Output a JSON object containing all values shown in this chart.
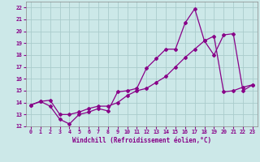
{
  "xlabel": "Windchill (Refroidissement éolien,°C)",
  "ylabel": "",
  "background_color": "#cce8e8",
  "grid_color": "#aacccc",
  "line_color": "#880088",
  "marker": "D",
  "markersize": 2.0,
  "linewidth": 0.9,
  "xlim": [
    -0.5,
    23.5
  ],
  "ylim": [
    12,
    22.5
  ],
  "yticks": [
    12,
    13,
    14,
    15,
    16,
    17,
    18,
    19,
    20,
    21,
    22
  ],
  "xticks": [
    0,
    1,
    2,
    3,
    4,
    5,
    6,
    7,
    8,
    9,
    10,
    11,
    12,
    13,
    14,
    15,
    16,
    17,
    18,
    19,
    20,
    21,
    22,
    23
  ],
  "line1_x": [
    0,
    1,
    2,
    3,
    4,
    5,
    6,
    7,
    8,
    9,
    10,
    11,
    12,
    13,
    14,
    15,
    16,
    17,
    18,
    19,
    20,
    21,
    22,
    23
  ],
  "line1_y": [
    13.8,
    14.1,
    13.7,
    12.6,
    12.2,
    13.0,
    13.2,
    13.5,
    13.3,
    14.9,
    15.0,
    15.2,
    16.9,
    17.7,
    18.5,
    18.5,
    20.7,
    21.9,
    19.2,
    18.0,
    19.7,
    19.8,
    15.0,
    15.5
  ],
  "line2_x": [
    0,
    1,
    2,
    3,
    4,
    5,
    6,
    7,
    8,
    9,
    10,
    11,
    12,
    13,
    14,
    15,
    16,
    17,
    18,
    19,
    20,
    21,
    22,
    23
  ],
  "line2_y": [
    13.8,
    14.1,
    14.2,
    13.0,
    13.0,
    13.2,
    13.5,
    13.7,
    13.7,
    14.0,
    14.6,
    15.0,
    15.2,
    15.7,
    16.2,
    17.0,
    17.8,
    18.5,
    19.2,
    19.6,
    14.9,
    15.0,
    15.3,
    15.5
  ]
}
